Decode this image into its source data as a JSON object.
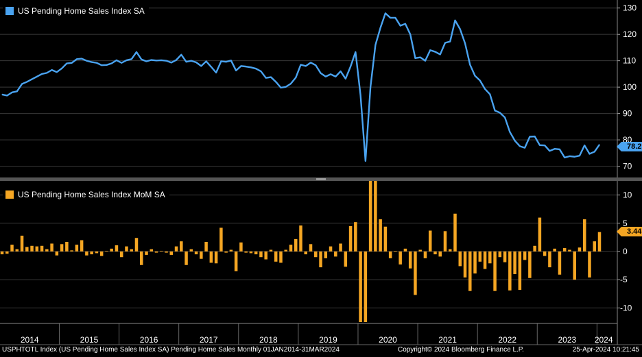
{
  "colors": {
    "blue": "#4aa3f0",
    "orange": "#f5a623",
    "grid": "#3a3a3a",
    "bg": "#000000"
  },
  "legend": {
    "top": "US Pending Home Sales Index SA",
    "bottom": "US Pending Home Sales Index MoM SA"
  },
  "footer": {
    "left": "USPHTOTL Index (US Pending Home Sales Index SA) Pending Home Sales  Monthly 01JAN2014-31MAR2024",
    "mid": "Copyright© 2024 Bloomberg Finance L.P.",
    "right": "25-Apr-2024 10:21:45"
  },
  "last_value_labels": {
    "top": "78.2",
    "bottom": "3.44"
  },
  "chart_data": [
    {
      "type": "line",
      "title": "US Pending Home Sales Index SA",
      "start": "2014-01",
      "frequency": "monthly",
      "ylim": [
        66,
        132
      ],
      "yticks": [
        70,
        80,
        90,
        100,
        110,
        120,
        130
      ],
      "values": [
        97.2,
        96.8,
        98.0,
        98.4,
        101.2,
        102.0,
        103.0,
        104.0,
        105.0,
        105.4,
        106.5,
        105.7,
        107.1,
        109.0,
        109.2,
        110.6,
        110.8,
        110.0,
        109.5,
        109.2,
        108.3,
        108.4,
        109.0,
        110.2,
        109.2,
        110.2,
        110.6,
        113.3,
        110.5,
        109.8,
        110.3,
        110.1,
        110.2,
        110.0,
        109.3,
        110.3,
        112.3,
        109.6,
        110.0,
        109.4,
        108.0,
        109.8,
        107.7,
        105.5,
        109.8,
        109.6,
        110.1,
        106.3,
        108.0,
        107.8,
        107.5,
        107.0,
        106.0,
        103.5,
        103.8,
        102.0,
        99.8,
        100.1,
        101.3,
        103.6,
        108.5,
        108.0,
        109.3,
        108.3,
        105.3,
        104.0,
        104.9,
        104.0,
        106.0,
        103.2,
        107.8,
        113.3,
        97.0,
        72.0,
        100.0,
        116.0,
        122.5,
        128.0,
        126.3,
        126.3,
        123.3,
        124.0,
        120.0,
        111.0,
        111.3,
        110.0,
        114.0,
        113.4,
        112.4,
        116.8,
        117.3,
        125.3,
        122.0,
        116.6,
        108.5,
        104.3,
        102.5,
        99.3,
        97.3,
        91.1,
        90.3,
        88.5,
        83.0,
        79.7,
        77.6,
        77.0,
        81.2,
        81.3,
        78.0,
        77.9,
        75.8,
        76.6,
        76.4,
        73.3,
        73.8,
        73.6,
        74.0,
        77.9,
        74.7,
        75.5,
        78.2
      ],
      "x_labels": [
        "2014",
        "2015",
        "2016",
        "2017",
        "2018",
        "2019",
        "2020",
        "2021",
        "2022",
        "2023",
        "2024"
      ],
      "last_value": 78.2
    },
    {
      "type": "bar",
      "title": "US Pending Home Sales Index MoM SA",
      "start": "2014-01",
      "frequency": "monthly",
      "ylim": [
        -12.5,
        12.5
      ],
      "yticks": [
        -10,
        -5,
        0,
        5,
        10
      ],
      "values": [
        -0.5,
        -0.4,
        1.2,
        0.4,
        2.8,
        0.8,
        1.0,
        0.9,
        1.0,
        0.4,
        1.4,
        -0.7,
        1.3,
        1.7,
        0.2,
        1.2,
        2.0,
        -0.7,
        -0.5,
        -0.3,
        -0.8,
        0.1,
        0.5,
        1.1,
        -1.0,
        0.9,
        0.4,
        2.4,
        -2.4,
        -0.6,
        0.4,
        -0.2,
        0.1,
        -0.2,
        -0.6,
        0.9,
        1.8,
        -2.4,
        0.4,
        -0.5,
        -1.3,
        1.7,
        -2.0,
        -2.1,
        4.2,
        -0.2,
        0.3,
        -3.5,
        1.6,
        -0.2,
        -0.3,
        -0.5,
        -1.0,
        -1.4,
        0.3,
        -1.8,
        -2.0,
        0.3,
        1.2,
        2.2,
        4.6,
        -0.5,
        1.3,
        -1.0,
        -2.8,
        -1.2,
        0.9,
        -0.9,
        1.4,
        -2.7,
        4.5,
        5.2,
        -13.0,
        -13.0,
        13.0,
        13.0,
        5.7,
        4.4,
        -1.2,
        0.0,
        -2.3,
        0.5,
        -3.0,
        -7.7,
        0.3,
        -1.2,
        3.7,
        -0.5,
        -0.9,
        3.6,
        0.4,
        6.7,
        -2.6,
        -4.6,
        -7.0,
        -3.9,
        -1.8,
        -3.1,
        -2.1,
        -7.0,
        -1.0,
        -1.9,
        -6.9,
        -4.0,
        -6.8,
        -1.5,
        -4.7,
        1.0,
        6.0,
        -0.8,
        -2.8,
        0.5,
        -4.1,
        0.6,
        0.3,
        -5.0,
        0.7,
        5.7,
        -4.6,
        1.8,
        3.44
      ],
      "x_labels": [
        "2014",
        "2015",
        "2016",
        "2017",
        "2018",
        "2019",
        "2020",
        "2021",
        "2022",
        "2023",
        "2024"
      ],
      "last_value": 3.44
    }
  ]
}
